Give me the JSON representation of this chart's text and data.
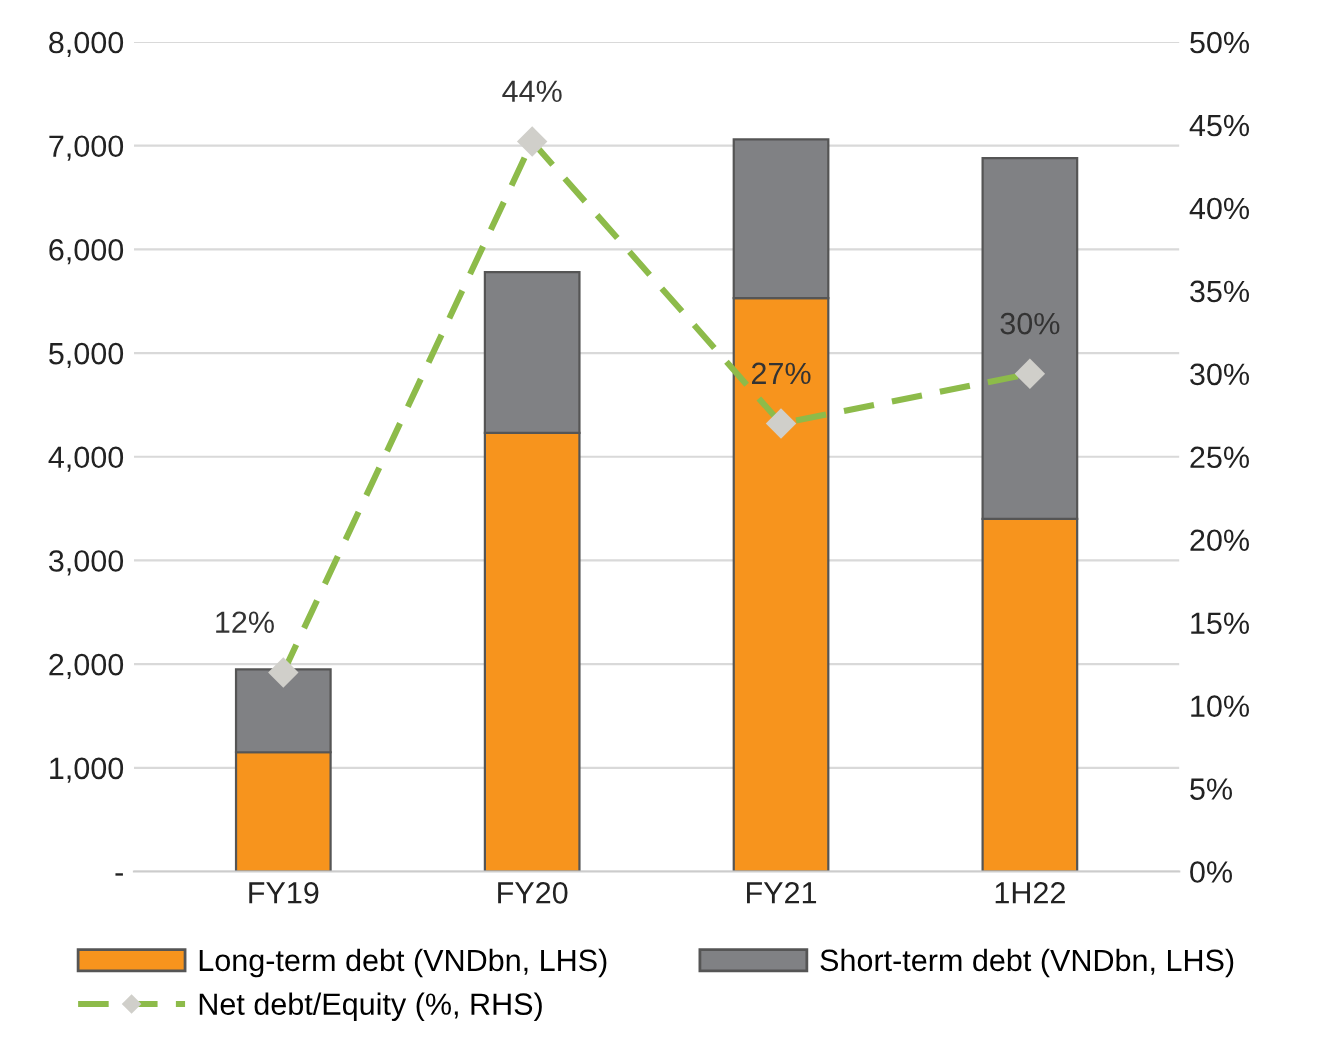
{
  "chart_data": {
    "type": "bar",
    "stacked": true,
    "categories": [
      "FY19",
      "FY20",
      "FY21",
      "1H22"
    ],
    "series": [
      {
        "name": "Long-term debt (VNDbn, LHS)",
        "color": "#f7941d",
        "values": [
          1150,
          4230,
          5530,
          3400
        ]
      },
      {
        "name": "Short-term debt (VNDbn, LHS)",
        "color": "#808184",
        "values": [
          800,
          1550,
          1530,
          3480
        ]
      },
      {
        "name": "Net debt/Equity (%, RHS)",
        "type": "line",
        "axis": "y2",
        "color": "#8dbb4a",
        "line_style": "dashed",
        "marker": "diamond",
        "values": [
          12,
          44,
          27,
          30
        ],
        "value_labels": [
          "12%",
          "44%",
          "27%",
          "30%"
        ]
      }
    ],
    "ylim": [
      0,
      8000
    ],
    "yticks": [
      {
        "value": 0,
        "label": "-"
      },
      {
        "value": 1000,
        "label": "1,000"
      },
      {
        "value": 2000,
        "label": "2,000"
      },
      {
        "value": 3000,
        "label": "3,000"
      },
      {
        "value": 4000,
        "label": "4,000"
      },
      {
        "value": 5000,
        "label": "5,000"
      },
      {
        "value": 6000,
        "label": "6,000"
      },
      {
        "value": 7000,
        "label": "7,000"
      },
      {
        "value": 8000,
        "label": "8,000"
      }
    ],
    "y2lim": [
      0,
      50
    ],
    "y2ticks": [
      {
        "value": 0,
        "label": "0%"
      },
      {
        "value": 5,
        "label": "5%"
      },
      {
        "value": 10,
        "label": "10%"
      },
      {
        "value": 15,
        "label": "15%"
      },
      {
        "value": 20,
        "label": "20%"
      },
      {
        "value": 25,
        "label": "25%"
      },
      {
        "value": 30,
        "label": "30%"
      },
      {
        "value": 35,
        "label": "35%"
      },
      {
        "value": 40,
        "label": "40%"
      },
      {
        "value": 45,
        "label": "45%"
      },
      {
        "value": 50,
        "label": "50%"
      }
    ],
    "grid": "y",
    "legend": "bottom"
  }
}
